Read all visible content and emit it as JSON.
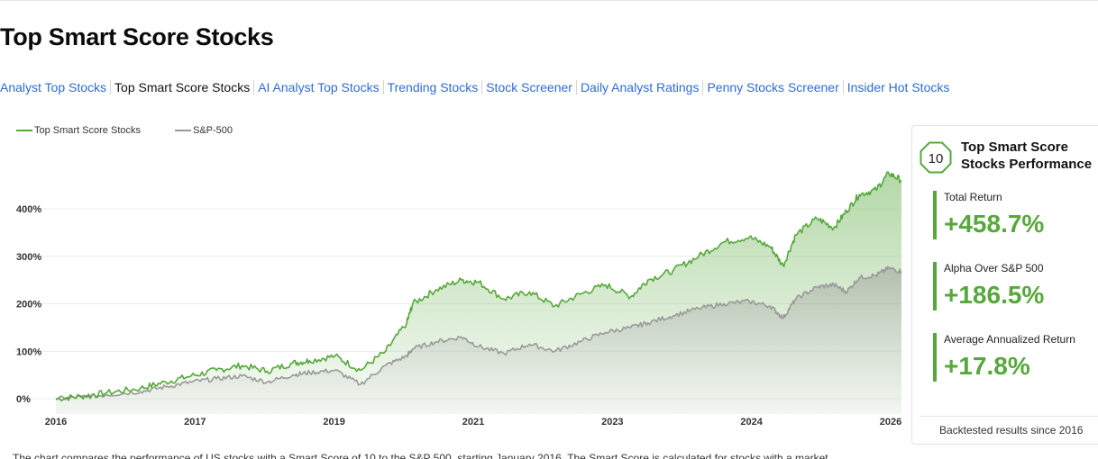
{
  "page": {
    "title": "Top Smart Score Stocks"
  },
  "nav": {
    "items": [
      {
        "label": "Analyst Top Stocks",
        "active": false
      },
      {
        "label": "Top Smart Score Stocks",
        "active": true
      },
      {
        "label": "AI Analyst Top Stocks",
        "active": false
      },
      {
        "label": "Trending Stocks",
        "active": false
      },
      {
        "label": "Stock Screener",
        "active": false
      },
      {
        "label": "Daily Analyst Ratings",
        "active": false
      },
      {
        "label": "Penny Stocks Screener",
        "active": false
      },
      {
        "label": "Insider Hot Stocks",
        "active": false
      }
    ]
  },
  "performance": {
    "badge": "10",
    "title": "Top Smart Score Stocks Performance",
    "metrics": [
      {
        "label": "Total Return",
        "value": "+458.7%"
      },
      {
        "label": "Alpha Over S&P 500",
        "value": "+186.5%"
      },
      {
        "label": "Average Annualized Return",
        "value": "+17.8%"
      }
    ],
    "note": "Backtested results since 2016",
    "accent_color": "#57a83c"
  },
  "footnote": "The chart compares the performance of US stocks with a Smart Score of 10 to the S&P 500, starting January 2016. The Smart Score is calculated for stocks with a market",
  "chart_data": {
    "type": "area",
    "title": "",
    "xlabel": "",
    "ylabel": "",
    "x_ticks": [
      "2016",
      "2017",
      "2019",
      "2021",
      "2023",
      "2024",
      "2026"
    ],
    "y_ticks": [
      "0%",
      "100%",
      "200%",
      "300%",
      "400%"
    ],
    "ylim": [
      -10,
      490
    ],
    "grid": true,
    "legend_position": "top-left",
    "x": [
      2016.0,
      2016.3,
      2016.6,
      2017.0,
      2017.3,
      2017.6,
      2017.9,
      2018.2,
      2018.5,
      2018.8,
      2019.0,
      2019.3,
      2019.6,
      2019.9,
      2020.15,
      2020.22,
      2020.5,
      2020.8,
      2021.0,
      2021.3,
      2021.6,
      2021.9,
      2022.2,
      2022.5,
      2022.8,
      2023.0,
      2023.3,
      2023.6,
      2023.9,
      2024.2,
      2024.45,
      2024.6,
      2024.75,
      2025.0,
      2025.2,
      2025.35,
      2025.5,
      2025.7,
      2025.85,
      2026.0
    ],
    "series": [
      {
        "name": "Top Smart Score Stocks",
        "color": "#57a83c",
        "values": [
          0,
          5,
          12,
          22,
          35,
          48,
          60,
          70,
          58,
          75,
          80,
          90,
          60,
          100,
          160,
          200,
          230,
          250,
          245,
          210,
          225,
          195,
          220,
          240,
          215,
          250,
          270,
          300,
          330,
          340,
          320,
          280,
          345,
          380,
          360,
          395,
          430,
          440,
          475,
          460
        ]
      },
      {
        "name": "S&P-500",
        "color": "#9a9a9a",
        "values": [
          0,
          3,
          8,
          15,
          25,
          35,
          42,
          48,
          35,
          50,
          55,
          60,
          30,
          70,
          90,
          105,
          120,
          130,
          110,
          95,
          115,
          100,
          120,
          140,
          150,
          160,
          175,
          190,
          200,
          205,
          195,
          170,
          210,
          235,
          240,
          225,
          255,
          260,
          275,
          268
        ]
      }
    ]
  }
}
